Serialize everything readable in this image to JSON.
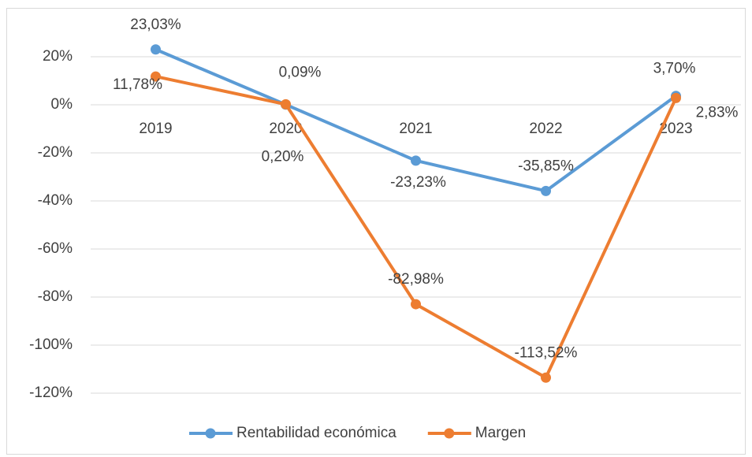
{
  "chart_data": {
    "type": "line",
    "categories": [
      "2019",
      "2020",
      "2021",
      "2022",
      "2023"
    ],
    "series": [
      {
        "name": "Rentabilidad económica",
        "color": "#5b9bd5",
        "values": [
          23.03,
          0.09,
          -23.23,
          -35.85,
          3.7
        ],
        "value_labels": [
          "23,03%",
          "0,09%",
          "-23,23%",
          "-35,85%",
          "3,70%"
        ]
      },
      {
        "name": "Margen",
        "color": "#ed7d31",
        "values": [
          11.78,
          0.2,
          -82.98,
          -113.52,
          2.83
        ],
        "value_labels": [
          "11,78%",
          "0,20%",
          "-82,98%",
          "-113,52%",
          "2,83%"
        ]
      }
    ],
    "ylim": [
      -120,
      20
    ],
    "yticks": [
      {
        "value": 20,
        "label": "20%"
      },
      {
        "value": 0,
        "label": "0%"
      },
      {
        "value": -20,
        "label": "-20%"
      },
      {
        "value": -40,
        "label": "-40%"
      },
      {
        "value": -60,
        "label": "-60%"
      },
      {
        "value": -80,
        "label": "-80%"
      },
      {
        "value": -100,
        "label": "-100%"
      },
      {
        "value": -120,
        "label": "-120%"
      }
    ],
    "grid": true,
    "legend": "bottom"
  }
}
